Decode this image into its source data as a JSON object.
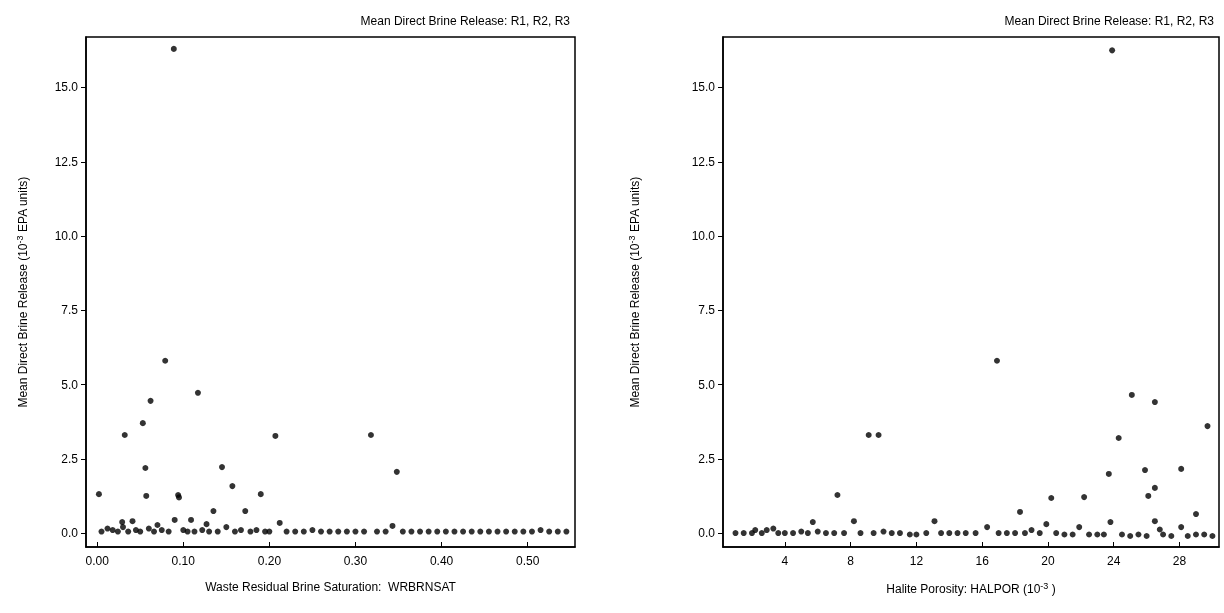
{
  "chart_data": [
    {
      "type": "scatter",
      "title": "Mean Direct Brine Release: R1, R2, R3",
      "xlabel": "Waste Residual Brine Saturation:  WRBRNSAT",
      "ylabel": "Mean Direct Brine Release (10$^{-3}$ EPA units)",
      "marker": "circle",
      "grid": false,
      "xlim": [
        -0.013,
        0.555
      ],
      "ylim": [
        -0.47,
        16.7
      ],
      "xticks": [
        {
          "value": 0,
          "label": "0.00"
        },
        {
          "value": 0.1,
          "label": "0.10"
        },
        {
          "value": 0.2,
          "label": "0.20"
        },
        {
          "value": 0.3,
          "label": "0.30"
        },
        {
          "value": 0.4,
          "label": "0.40"
        },
        {
          "value": 0.5,
          "label": "0.50"
        }
      ],
      "yticks": [
        {
          "value": 0,
          "label": "0.0"
        },
        {
          "value": 2.5,
          "label": "2.5"
        },
        {
          "value": 5,
          "label": "5.0"
        },
        {
          "value": 7.5,
          "label": "7.5"
        },
        {
          "value": 10,
          "label": "10.0"
        },
        {
          "value": 12.5,
          "label": "12.5"
        },
        {
          "value": 15,
          "label": "15.0"
        }
      ],
      "series": [
        {
          "color": "#000000",
          "x": [
            0.002,
            0.032,
            0.053,
            0.062,
            0.079,
            0.056,
            0.057,
            0.094,
            0.095,
            0.117,
            0.145,
            0.157,
            0.135,
            0.172,
            0.19,
            0.207,
            0.212,
            0.029,
            0.041,
            0.07,
            0.09,
            0.109,
            0.127,
            0.089,
            0.318,
            0.348,
            0.343,
            0.005,
            0.012,
            0.018,
            0.024,
            0.03,
            0.036,
            0.045,
            0.05,
            0.06,
            0.066,
            0.075,
            0.083,
            0.1,
            0.105,
            0.113,
            0.122,
            0.13,
            0.14,
            0.15,
            0.16,
            0.167,
            0.178,
            0.185,
            0.195,
            0.2,
            0.22,
            0.23,
            0.24,
            0.25,
            0.26,
            0.27,
            0.28,
            0.29,
            0.3,
            0.31,
            0.325,
            0.335,
            0.355,
            0.365,
            0.375,
            0.385,
            0.395,
            0.405,
            0.415,
            0.425,
            0.435,
            0.445,
            0.455,
            0.465,
            0.475,
            0.485,
            0.495,
            0.505,
            0.515,
            0.525,
            0.535,
            0.545
          ],
          "values": [
            1.31,
            3.3,
            3.7,
            4.45,
            5.8,
            2.19,
            1.25,
            1.28,
            1.2,
            4.72,
            2.22,
            1.58,
            0.74,
            0.74,
            1.31,
            3.27,
            0.34,
            0.37,
            0.4,
            0.27,
            0.44,
            0.44,
            0.3,
            16.3,
            3.3,
            2.06,
            0.24,
            0.05,
            0.15,
            0.1,
            0.05,
            0.2,
            0.05,
            0.1,
            0.05,
            0.15,
            0.05,
            0.1,
            0.05,
            0.1,
            0.05,
            0.05,
            0.1,
            0.05,
            0.05,
            0.2,
            0.05,
            0.1,
            0.05,
            0.1,
            0.05,
            0.05,
            0.05,
            0.05,
            0.05,
            0.1,
            0.05,
            0.05,
            0.05,
            0.05,
            0.05,
            0.05,
            0.05,
            0.05,
            0.05,
            0.05,
            0.05,
            0.05,
            0.05,
            0.05,
            0.05,
            0.05,
            0.05,
            0.05,
            0.05,
            0.05,
            0.05,
            0.05,
            0.05,
            0.05,
            0.1,
            0.05,
            0.05,
            0.05
          ]
        }
      ]
    },
    {
      "type": "scatter",
      "title": "Mean Direct Brine Release: R1, R2, R3",
      "xlabel": "Halite Porosity: HALPOR (10$^{-3}$ )",
      "ylabel": "Mean Direct Brine Release (10$^{-3}$ EPA units)",
      "marker": "circle",
      "grid": false,
      "xlim": [
        0.24,
        30.4
      ],
      "ylim": [
        -0.47,
        16.7
      ],
      "xticks": [
        4,
        8,
        12,
        16,
        20,
        24,
        28
      ],
      "yticks": [
        {
          "value": 0,
          "label": "0.0"
        },
        {
          "value": 2.5,
          "label": "2.5"
        },
        {
          "value": 5,
          "label": "5.0"
        },
        {
          "value": 7.5,
          "label": "7.5"
        },
        {
          "value": 10,
          "label": "10.0"
        },
        {
          "value": 12.5,
          "label": "12.5"
        },
        {
          "value": 15,
          "label": "15.0"
        }
      ],
      "series": [
        {
          "color": "#000000",
          "x": [
            5.7,
            7.2,
            8.2,
            9.1,
            9.7,
            13.1,
            16.3,
            16.9,
            18.3,
            19.9,
            20.2,
            21.9,
            22.2,
            23.7,
            23.8,
            23.9,
            24.3,
            25.1,
            25.9,
            26.1,
            26.5,
            26.5,
            26.5,
            26.8,
            28.1,
            28.1,
            29.0,
            29.7,
            2.2,
            2.9,
            3.3,
            1.0,
            1.5,
            2.0,
            2.6,
            3.6,
            4.0,
            4.5,
            5.0,
            5.4,
            6.0,
            6.5,
            7.0,
            7.6,
            8.6,
            9.4,
            10.0,
            10.5,
            11.0,
            11.6,
            12.0,
            12.6,
            13.5,
            14.0,
            14.5,
            15.0,
            15.6,
            17.0,
            17.5,
            18.0,
            18.6,
            19.0,
            19.5,
            20.5,
            21.0,
            21.5,
            22.5,
            23.0,
            23.4,
            24.5,
            25.0,
            25.5,
            26.0,
            27.0,
            27.5,
            28.5,
            29.0,
            29.5,
            30.0
          ],
          "values": [
            0.37,
            1.28,
            0.4,
            3.3,
            3.3,
            0.4,
            0.2,
            5.8,
            0.71,
            0.3,
            1.18,
            0.2,
            1.21,
            1.99,
            0.37,
            16.25,
            3.2,
            4.65,
            2.12,
            1.25,
            4.41,
            1.52,
            0.4,
            0.12,
            2.16,
            0.2,
            0.64,
            3.6,
            0.1,
            0.1,
            0.15,
            0.0,
            0.0,
            0.0,
            0.0,
            0.0,
            0.0,
            0.0,
            0.05,
            0.0,
            0.05,
            0.0,
            0.0,
            0.0,
            0.0,
            0.0,
            0.05,
            0.0,
            0.0,
            -0.05,
            -0.05,
            0.0,
            0.0,
            0.0,
            0.0,
            0.0,
            0.0,
            0.0,
            0.0,
            0.0,
            0.0,
            0.1,
            0.0,
            0.0,
            -0.05,
            -0.05,
            -0.05,
            -0.05,
            -0.05,
            -0.05,
            -0.1,
            -0.05,
            -0.1,
            -0.05,
            -0.1,
            -0.1,
            -0.05,
            -0.05,
            -0.1
          ]
        }
      ]
    }
  ]
}
